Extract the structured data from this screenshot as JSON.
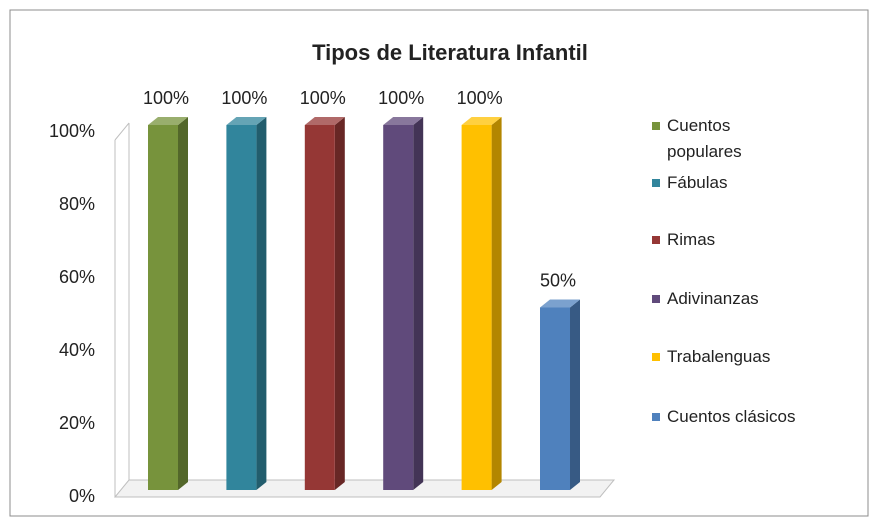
{
  "chart_data": {
    "type": "bar3d",
    "title": "Tipos de  Literatura Infantil",
    "series": [
      {
        "name": "Cuentos populares",
        "color": "#77933c",
        "values": [
          100
        ],
        "value_labels": [
          "100%"
        ]
      },
      {
        "name": "Fábulas",
        "color": "#31859c",
        "values": [
          100
        ],
        "value_labels": [
          "100%"
        ]
      },
      {
        "name": "Rimas",
        "color": "#953735",
        "values": [
          100
        ],
        "value_labels": [
          "100%"
        ]
      },
      {
        "name": "Adivinanzas",
        "color": "#604a7b",
        "values": [
          100
        ],
        "value_labels": [
          "100%"
        ]
      },
      {
        "name": "Trabalenguas",
        "color": "#ffc000",
        "values": [
          100
        ],
        "value_labels": [
          "100%"
        ]
      },
      {
        "name": "Cuentos clásicos",
        "color": "#4f81bd",
        "values": [
          50
        ],
        "value_labels": [
          "50%"
        ]
      }
    ],
    "ylim": [
      0,
      100
    ],
    "yticks": [
      {
        "value": 0,
        "label": "0%"
      },
      {
        "value": 20,
        "label": "20%"
      },
      {
        "value": 40,
        "label": "40%"
      },
      {
        "value": 60,
        "label": "60%"
      },
      {
        "value": 80,
        "label": "80%"
      },
      {
        "value": 100,
        "label": "100%"
      }
    ],
    "legend": "right"
  }
}
